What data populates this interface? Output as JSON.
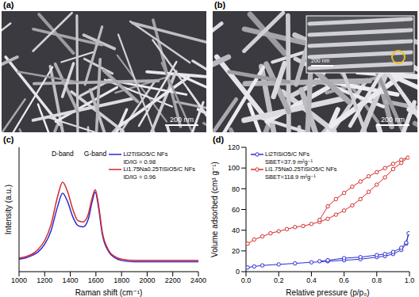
{
  "images": [
    {
      "label": "(a)",
      "scale_bar": "200 nm"
    },
    {
      "label": "(b)",
      "scale_bar": "200 nm",
      "inset": {
        "scale_bar": "200 nm"
      }
    }
  ],
  "chart_data": [
    {
      "label": "(c)",
      "type": "line",
      "x_label": "Raman shift (cm⁻¹)",
      "y_label": "Intensity (a.u.)",
      "x": [
        1000,
        1050,
        1100,
        1150,
        1200,
        1250,
        1300,
        1340,
        1380,
        1420,
        1460,
        1500,
        1540,
        1570,
        1595,
        1620,
        1650,
        1700,
        1750,
        1800,
        1900,
        2000,
        2100,
        2200,
        2300,
        2400
      ],
      "series": [
        {
          "name": "Li2TiSiO5/C NFs",
          "color": "#2b2bd6",
          "annotation": "ID/IG = 0.98",
          "values": [
            10,
            11,
            13,
            16,
            22,
            33,
            52,
            63,
            56,
            44,
            37,
            36,
            42,
            56,
            64,
            52,
            30,
            16,
            11,
            9,
            8,
            8,
            8,
            8,
            8,
            8
          ]
        },
        {
          "name": "Li1.75Na0.25TiSiO5/C NFs",
          "color": "#d62a2a",
          "annotation": "ID/IG = 0.96",
          "values": [
            11,
            12,
            14,
            18,
            25,
            38,
            60,
            72,
            64,
            50,
            41,
            40,
            46,
            59,
            66,
            54,
            32,
            17,
            12,
            10,
            9,
            9,
            9,
            9,
            9,
            9
          ]
        }
      ],
      "annotations": [
        {
          "text": "D-band",
          "x": 1340
        },
        {
          "text": "G-band",
          "x": 1595
        }
      ],
      "xlim": [
        1000,
        2400
      ],
      "xticks": [
        1000,
        1200,
        1400,
        1600,
        1800,
        2000,
        2200,
        2400
      ],
      "ylim": [
        0,
        100
      ],
      "tick_labels": "x",
      "grid": false,
      "legend": "upper right"
    },
    {
      "label": "(d)",
      "type": "scatter",
      "x_label": "Relative pressure (p/p₀)",
      "y_label": "Volume adsorbed (cm³ g⁻¹)",
      "series": [
        {
          "name": "Li2TiSiO5/C NFs",
          "color": "#2b2bd6",
          "marker": "circle",
          "line_style": "solid",
          "annotation": "SBET=37.9 m²g⁻¹",
          "x": [
            0.01,
            0.05,
            0.1,
            0.2,
            0.3,
            0.4,
            0.5,
            0.6,
            0.7,
            0.8,
            0.85,
            0.9,
            0.95,
            0.98,
            0.995,
            0.98,
            0.95,
            0.9,
            0.85,
            0.8,
            0.7,
            0.6,
            0.5,
            0.45
          ],
          "values": [
            4,
            5,
            6,
            7,
            8,
            9,
            10,
            11,
            12,
            14,
            15,
            17,
            21,
            27,
            37,
            28,
            23,
            19,
            17,
            16,
            14,
            13,
            11,
            10
          ]
        },
        {
          "name": "Li1.75Na0.25TiSiO5/C NFs",
          "color": "#d62a2a",
          "marker": "circle",
          "line_style": "solid",
          "annotation": "SBET=118.9 m²g⁻¹",
          "x": [
            0.01,
            0.05,
            0.1,
            0.15,
            0.2,
            0.25,
            0.3,
            0.35,
            0.4,
            0.45,
            0.5,
            0.55,
            0.6,
            0.65,
            0.7,
            0.75,
            0.8,
            0.85,
            0.9,
            0.95,
            0.99,
            0.95,
            0.9,
            0.85,
            0.8,
            0.75,
            0.7,
            0.65,
            0.6,
            0.55,
            0.5,
            0.45
          ],
          "values": [
            27,
            31,
            34,
            37,
            39,
            41,
            43,
            44,
            46,
            48,
            51,
            55,
            59,
            64,
            70,
            77,
            84,
            91,
            99,
            105,
            110,
            108,
            104,
            100,
            96,
            92,
            87,
            82,
            76,
            70,
            63,
            50
          ]
        }
      ],
      "xlim": [
        0,
        1
      ],
      "xticks": [
        {
          "value": 0,
          "label": "0.0"
        },
        0.2,
        0.4,
        0.6,
        0.8,
        {
          "value": 1,
          "label": "1.0"
        }
      ],
      "ylim": [
        0,
        120
      ],
      "yticks": [
        0,
        20,
        40,
        60,
        80,
        100,
        120
      ],
      "grid": false,
      "legend": "upper left"
    }
  ]
}
